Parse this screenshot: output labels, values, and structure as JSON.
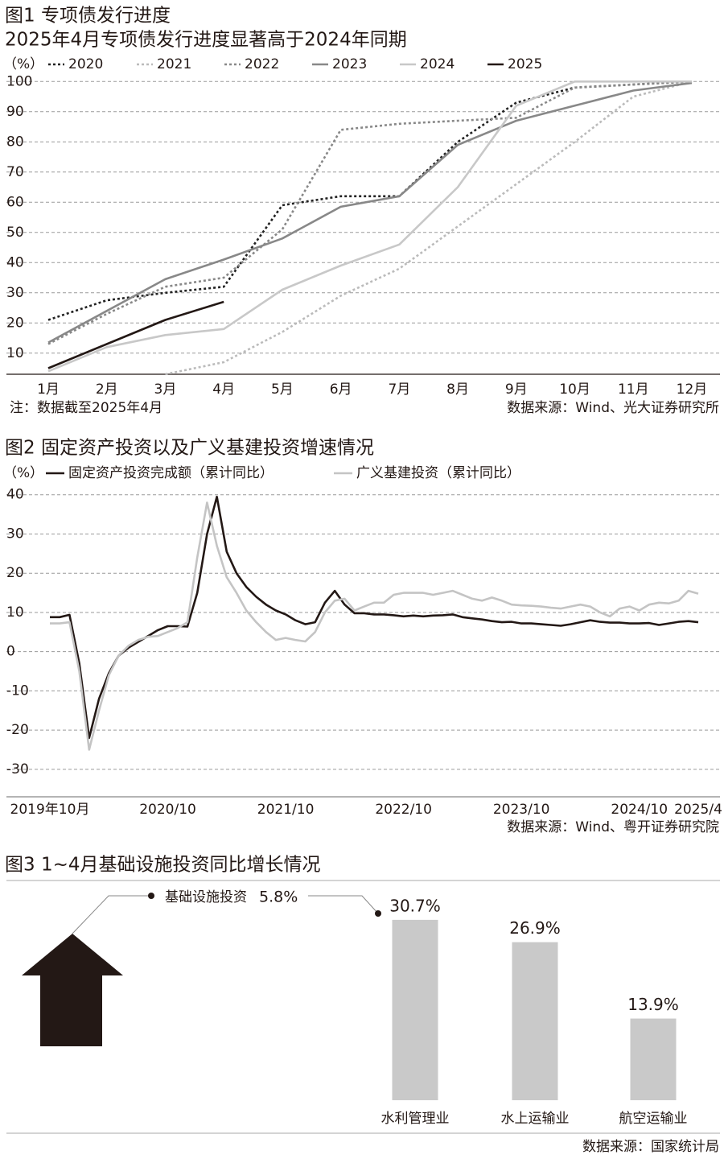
{
  "chart_data": [
    {
      "type": "line",
      "title": "图1 专项债发行进度",
      "subtitle": "2025年4月专项债发行进度显著高于2024年同期",
      "y_unit": "（%）",
      "categories": [
        "1月",
        "2月",
        "3月",
        "4月",
        "5月",
        "6月",
        "7月",
        "8月",
        "9月",
        "10月",
        "11月",
        "12月"
      ],
      "series": [
        {
          "name": "2020",
          "color": "#222222",
          "dashed": true,
          "values": [
            21,
            27.5,
            30,
            32,
            59,
            62,
            62,
            80,
            93,
            98,
            99,
            100
          ]
        },
        {
          "name": "2021",
          "color": "#bbbbbb",
          "dashed": true,
          "values": [
            null,
            null,
            3,
            7,
            17,
            29,
            38,
            52,
            66,
            80,
            95,
            100
          ]
        },
        {
          "name": "2022",
          "color": "#888888",
          "dashed": true,
          "values": [
            13,
            23,
            32,
            35,
            51,
            84,
            86,
            87,
            88,
            98,
            99,
            100
          ]
        },
        {
          "name": "2023",
          "color": "#888888",
          "dashed": false,
          "values": [
            13.5,
            24,
            34.5,
            41,
            48,
            58.5,
            62,
            79,
            87,
            92,
            97,
            99.5
          ]
        },
        {
          "name": "2024",
          "color": "#c8c8c8",
          "dashed": false,
          "values": [
            4,
            12,
            16,
            18,
            31,
            39,
            46,
            65,
            92,
            100,
            100,
            100
          ]
        },
        {
          "name": "2025",
          "color": "#231815",
          "dashed": false,
          "values": [
            5,
            13,
            21,
            27,
            null,
            null,
            null,
            null,
            null,
            null,
            null,
            null
          ]
        }
      ],
      "ylim": [
        3,
        103
      ],
      "yticks": [
        10,
        20,
        30,
        40,
        50,
        60,
        70,
        80,
        90,
        100
      ],
      "grid": true,
      "note": "注：数据截至2025年4月",
      "source": "数据来源：Wind、光大证券研究所"
    },
    {
      "type": "line",
      "title": "图2 固定资产投资以及广义基建投资增速情况",
      "y_unit": "（%）",
      "categories": [
        "2019年10月",
        null,
        null,
        null,
        null,
        null,
        null,
        null,
        null,
        null,
        null,
        null,
        "2020/10",
        null,
        null,
        null,
        null,
        null,
        null,
        null,
        null,
        null,
        null,
        null,
        "2021/10",
        null,
        null,
        null,
        null,
        null,
        null,
        null,
        null,
        null,
        null,
        null,
        "2022/10",
        null,
        null,
        null,
        null,
        null,
        null,
        null,
        null,
        null,
        null,
        null,
        "2023/10",
        null,
        null,
        null,
        null,
        null,
        null,
        null,
        null,
        null,
        null,
        null,
        "2024/10",
        null,
        null,
        null,
        null,
        null,
        "2025/4"
      ],
      "series": [
        {
          "name": "固定资产投资完成额（累计同比）",
          "color": "#231815",
          "dashed": false,
          "values": [
            8.8,
            8.8,
            9.4,
            -3,
            -22,
            -12,
            -5.5,
            -1,
            1,
            2.5,
            4,
            5.5,
            6.5,
            6.5,
            6.4,
            15,
            30,
            39.5,
            25.5,
            20,
            16.5,
            14,
            12,
            10.5,
            9.5,
            8,
            7,
            7.5,
            12.5,
            15.5,
            12,
            9.8,
            9.8,
            9.5,
            9.5,
            9.3,
            9,
            9.2,
            9,
            9.2,
            9.3,
            9.5,
            8.8,
            8.5,
            8.2,
            7.8,
            7.5,
            7.6,
            7.2,
            7.2,
            7,
            6.8,
            6.6,
            7,
            7.5,
            8,
            7.6,
            7.4,
            7.4,
            7.2,
            7.2,
            7.3,
            6.8,
            7.2,
            7.6,
            7.8,
            7.5
          ]
        },
        {
          "name": "广义基建投资（累计同比）",
          "color": "#c4c4c4",
          "dashed": false,
          "values": [
            7.2,
            7.2,
            7.5,
            -5,
            -25,
            -15,
            -6,
            -1,
            1.5,
            3,
            3.8,
            4,
            5,
            6,
            7.5,
            24,
            38,
            27,
            19,
            15,
            10.5,
            7.5,
            5,
            3,
            3.5,
            3,
            2.6,
            5,
            10,
            13,
            13.5,
            10.5,
            11.5,
            12.5,
            12.5,
            14.5,
            15,
            15,
            15,
            14.5,
            15,
            15.5,
            14.5,
            13.5,
            13,
            13.8,
            13,
            12,
            11.8,
            11.7,
            11.5,
            11.2,
            11,
            11.5,
            12,
            11.5,
            10,
            9,
            11,
            11.5,
            10.5,
            12,
            12.5,
            12.3,
            13,
            15.5,
            14.8
          ]
        }
      ],
      "ylim": [
        -37,
        42
      ],
      "yticks": [
        -30,
        -20,
        -10,
        0,
        10,
        20,
        30,
        40
      ],
      "grid": true,
      "source": "数据来源：Wind、粤开证券研究院"
    },
    {
      "type": "bar",
      "title": "图3 1~4月基础设施投资同比增长情况",
      "headline": {
        "label": "基础设施投资",
        "value": 5.8,
        "value_label": "5.8%"
      },
      "categories": [
        "水利管理业",
        "水上运输业",
        "航空运输业"
      ],
      "values": [
        30.7,
        26.9,
        13.9
      ],
      "value_labels": [
        "30.7%",
        "26.9%",
        "13.9%"
      ],
      "color": "#c9c9c9",
      "source": "数据来源：国家统计局"
    }
  ]
}
